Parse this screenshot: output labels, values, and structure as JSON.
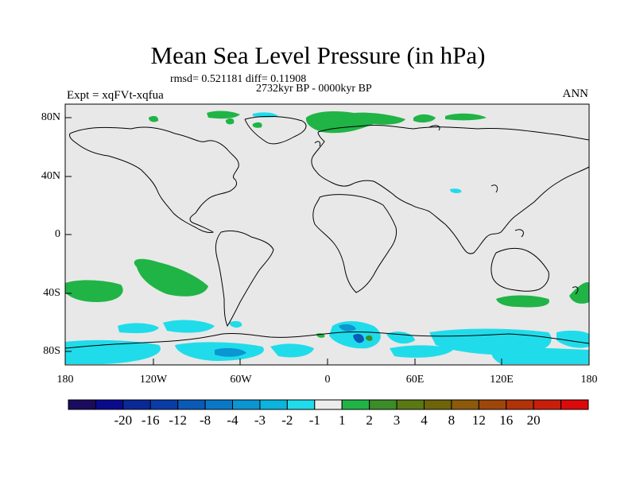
{
  "title": "Mean Sea Level Pressure (in hPa)",
  "stats_line": "rmsd= 0.521181 diff= 0.11908",
  "period_line": "2732kyr BP - 0000kyr BP",
  "experiment_label": "Expt = xqFVt-xqfua",
  "season_label": "ANN",
  "latitude_labels": [
    "80N",
    "40N",
    "0",
    "40S",
    "80S"
  ],
  "longitude_labels": [
    "180",
    "120W",
    "60W",
    "0",
    "60E",
    "120E",
    "180"
  ],
  "colorbar": {
    "colors": [
      "#1a0b5e",
      "#0a0a8c",
      "#0a2896",
      "#0a3ca8",
      "#0a5ab8",
      "#0a78c8",
      "#0a96d2",
      "#0ab4dc",
      "#20dcea",
      "#ececec",
      "#20b446",
      "#3c8c28",
      "#5a7814",
      "#6e640a",
      "#8c5a0a",
      "#a0460a",
      "#b4320a",
      "#c81e0a",
      "#dc0a0a"
    ],
    "labels": [
      "-20",
      "-16",
      "-12",
      "-8",
      "-4",
      "-3",
      "-2",
      "-1",
      "1",
      "2",
      "3",
      "4",
      "8",
      "12",
      "16",
      "20"
    ]
  },
  "colors": {
    "background": "#e8e8e8",
    "positive_anomaly": "#20b446",
    "negative_light": "#20dcea",
    "negative_mid": "#0a96d2",
    "negative_dark": "#0a5ab8"
  }
}
